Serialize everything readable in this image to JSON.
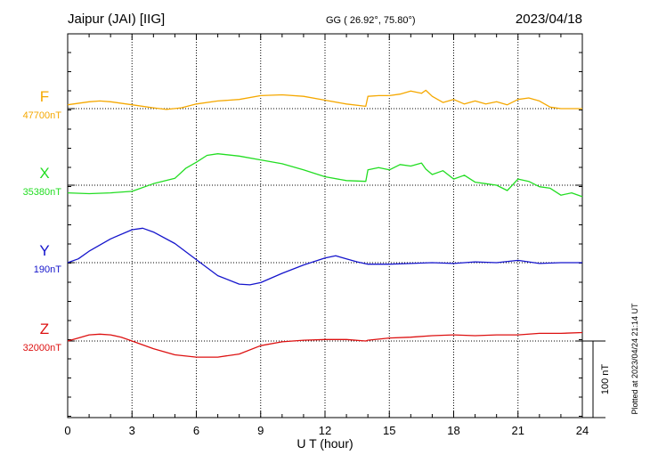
{
  "header": {
    "station": "Jaipur (JAI)  [IIG]",
    "coords": "GG ( 26.92°,  75.80°)",
    "date": "2023/04/18"
  },
  "side_note": "Plotted at 2023/04/24 21:14 UT",
  "scale_label": "100 nT",
  "chart_data": {
    "type": "line",
    "title": "Jaipur (JAI)  [IIG]",
    "xlabel": "U T (hour)",
    "xlim": [
      0,
      24
    ],
    "xticks": [
      0,
      3,
      6,
      9,
      12,
      15,
      18,
      21,
      24
    ],
    "grid": true,
    "scale_bar_nT": 100,
    "series": [
      {
        "name": "F",
        "baseline_label": "47700nT",
        "baseline_nT": 47700,
        "color": "#f5a800",
        "x": [
          0,
          1,
          1.5,
          2,
          3,
          4,
          4.6,
          5.3,
          6,
          7,
          8,
          9,
          10,
          11,
          12,
          13,
          13.9,
          14,
          14.5,
          15,
          15.5,
          16,
          16.5,
          16.7,
          17,
          17.5,
          18,
          18.5,
          19,
          19.5,
          20,
          20.5,
          21,
          21.5,
          22,
          22.5,
          23,
          23.5,
          24
        ],
        "y": [
          47705,
          47709,
          47710,
          47709,
          47705,
          47701,
          47699,
          47701,
          47706,
          47710,
          47712,
          47717,
          47718,
          47716,
          47711,
          47706,
          47703,
          47716,
          47717,
          47717,
          47719,
          47723,
          47720,
          47724,
          47716,
          47708,
          47712,
          47706,
          47710,
          47706,
          47709,
          47705,
          47712,
          47714,
          47710,
          47702,
          47700,
          47700,
          47700
        ]
      },
      {
        "name": "X",
        "baseline_label": "35380nT",
        "baseline_nT": 35380,
        "color": "#22dd22",
        "x": [
          0,
          1,
          2,
          3,
          4,
          5,
          5.5,
          6,
          6.5,
          7,
          8,
          9,
          10,
          11,
          12,
          13,
          13.9,
          14,
          14.5,
          15,
          15.5,
          16,
          16.5,
          16.7,
          17,
          17.5,
          18,
          18.5,
          19,
          19.5,
          20,
          20.5,
          21,
          21.5,
          22,
          22.5,
          23,
          23.5,
          24
        ],
        "y": [
          35370,
          35369,
          35370,
          35372,
          35382,
          35389,
          35402,
          35410,
          35419,
          35421,
          35418,
          35413,
          35408,
          35400,
          35391,
          35386,
          35385,
          35400,
          35403,
          35400,
          35407,
          35405,
          35409,
          35401,
          35394,
          35399,
          35388,
          35393,
          35384,
          35382,
          35380,
          35373,
          35388,
          35385,
          35378,
          35376,
          35367,
          35370,
          35365
        ]
      },
      {
        "name": "Y",
        "baseline_label": "190nT",
        "baseline_nT": 190,
        "color": "#1515cc",
        "x": [
          0,
          0.5,
          1,
          2,
          3,
          3.5,
          4,
          5,
          6,
          7,
          8,
          8.5,
          9,
          10,
          11,
          12,
          12.5,
          13,
          13.5,
          14,
          15,
          16,
          17,
          18,
          19,
          20,
          21,
          22,
          23,
          24
        ],
        "y": [
          190,
          195,
          205,
          221,
          233,
          235,
          230,
          215,
          194,
          173,
          162,
          161,
          164,
          176,
          187,
          196,
          199,
          195,
          191,
          188,
          188,
          189,
          190,
          189,
          191,
          190,
          193,
          189,
          190,
          190
        ]
      },
      {
        "name": "Z",
        "baseline_label": "32000nT",
        "baseline_nT": 32000,
        "color": "#dd1111",
        "x": [
          0,
          0.5,
          1,
          1.5,
          2,
          2.5,
          3,
          4,
          5,
          6,
          7,
          8,
          9,
          10,
          11,
          12,
          13,
          13.9,
          14,
          15,
          16,
          17,
          18,
          19,
          20,
          21,
          22,
          23,
          24
        ],
        "y": [
          32000,
          32004,
          32008,
          32009,
          32008,
          32005,
          32000,
          31990,
          31982,
          31979,
          31979,
          31983,
          31994,
          31999,
          32001,
          32002,
          32002,
          32000,
          32001,
          32004,
          32005,
          32007,
          32008,
          32007,
          32008,
          32008,
          32010,
          32010,
          32011
        ]
      }
    ]
  }
}
